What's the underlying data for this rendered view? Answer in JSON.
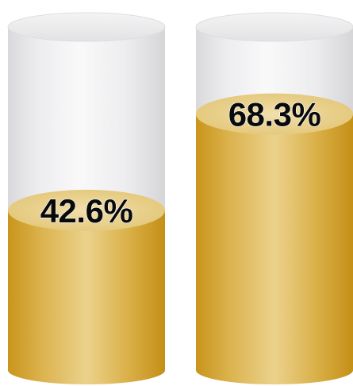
{
  "chart_data": {
    "type": "bar",
    "style": "cylinder-gauge",
    "ylim": [
      0,
      100
    ],
    "categories": [
      "",
      ""
    ],
    "values": [
      42.6,
      68.3
    ],
    "labels": [
      "42.6%",
      "68.3%"
    ],
    "colors": {
      "fill": "#d6a52a",
      "fill_highlight": "#ecd48e",
      "fill_top": "#ecd79c",
      "empty": "#f1f1f2",
      "empty_edge": "#dcdcde",
      "label_text": "#0a0a0a"
    }
  }
}
